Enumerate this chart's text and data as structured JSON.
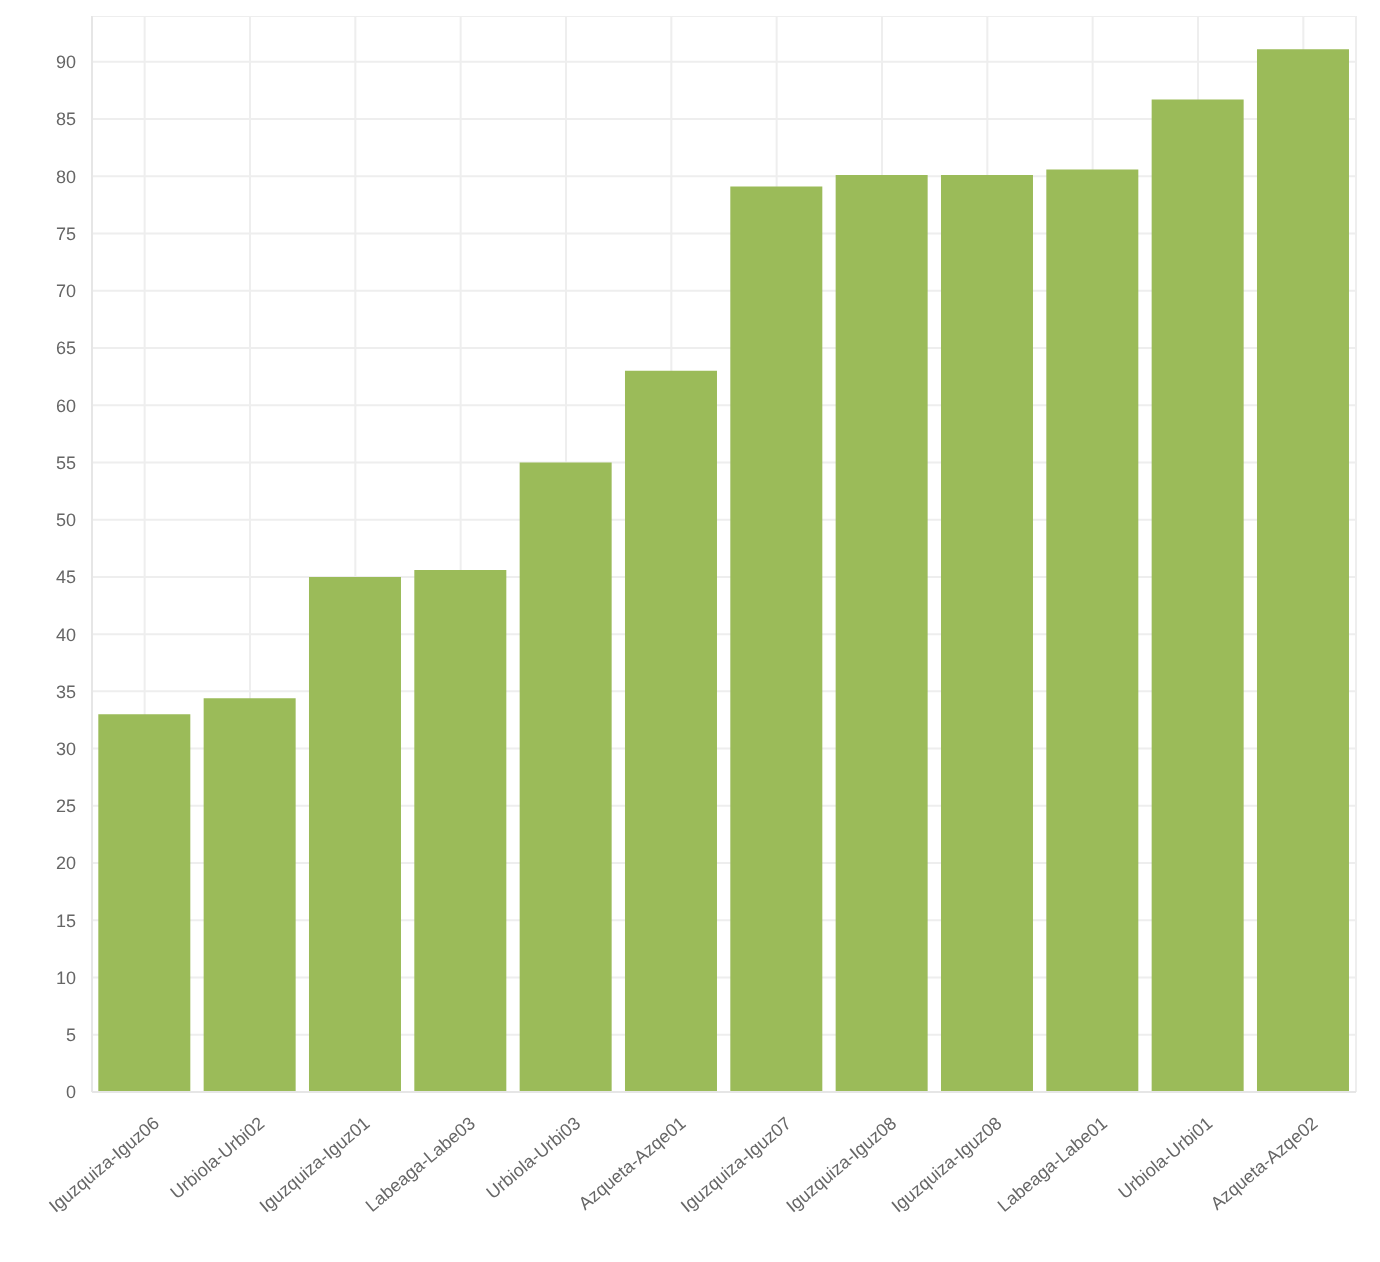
{
  "chart_data": {
    "type": "bar",
    "categories": [
      "Iguzquiza-Iguz06",
      "Urbiola-Urbi02",
      "Iguzquiza-Iguz01",
      "Labeaga-Labe03",
      "Urbiola-Urbi03",
      "Azqueta-Azqe01",
      "Iguzquiza-Iguz07",
      "Iguzquiza-Iguz08",
      "Iguzquiza-Iguz08",
      "Labeaga-Labe01",
      "Urbiola-Urbi01",
      "Azqueta-Azqe02"
    ],
    "values": [
      33,
      34.4,
      45,
      45.6,
      55,
      63,
      79.1,
      80.1,
      80.1,
      80.6,
      86.7,
      91.1
    ],
    "color": "#9bbb59",
    "ylim": [
      0,
      94
    ],
    "yticks": [
      0,
      5,
      10,
      15,
      20,
      25,
      30,
      35,
      40,
      45,
      50,
      55,
      60,
      65,
      70,
      75,
      80,
      85,
      90
    ],
    "grid": true
  }
}
